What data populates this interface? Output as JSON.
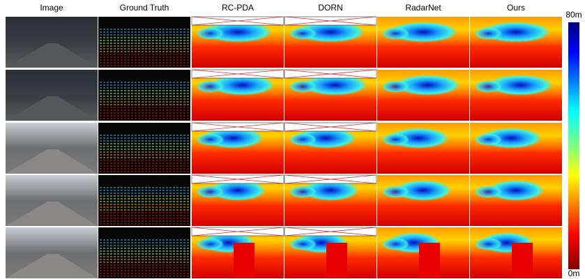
{
  "figure": {
    "columns": [
      "Image",
      "Ground Truth",
      "RC-PDA",
      "DORN",
      "RadarNet",
      "Ours"
    ],
    "colorbar": {
      "max_label": "80m",
      "min_label": "0m"
    }
  }
}
